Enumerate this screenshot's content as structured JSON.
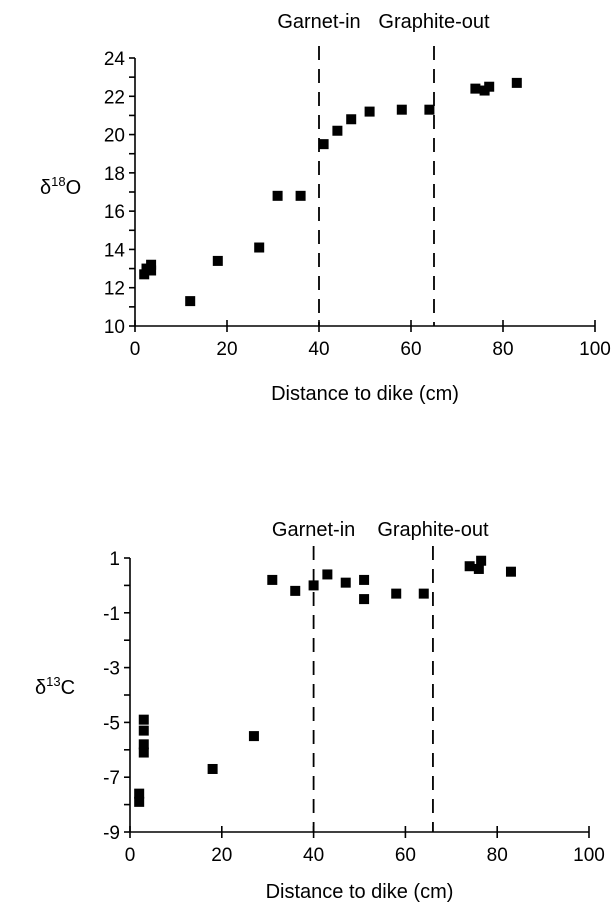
{
  "chart_data": [
    {
      "type": "scatter",
      "title": "",
      "xlabel": "Distance to dike (cm)",
      "ylabel": "δ18O",
      "ylabel_parts": {
        "prefix": "δ",
        "sup": "18",
        "base": "O"
      },
      "xlim": [
        0,
        100
      ],
      "ylim": [
        10,
        24
      ],
      "xticks": [
        0,
        20,
        40,
        60,
        80,
        100
      ],
      "yticks": [
        10,
        12,
        14,
        16,
        18,
        20,
        22,
        24
      ],
      "ytick_step_minor": 1,
      "grid": false,
      "marker": "filled-square",
      "marker_color": "#000000",
      "reference_lines": [
        {
          "x": 40,
          "label": "Garnet-in",
          "style": "dashed"
        },
        {
          "x": 65,
          "label": "Graphite-out",
          "style": "dashed"
        }
      ],
      "series": [
        {
          "x": [
            2,
            2.5,
            3.5,
            3.5,
            12,
            18,
            27,
            31,
            36,
            41,
            44,
            47,
            51,
            58,
            64,
            74,
            76,
            77,
            83
          ],
          "y": [
            12.7,
            13.0,
            12.9,
            13.2,
            11.3,
            13.4,
            14.1,
            16.8,
            16.8,
            19.5,
            20.2,
            20.8,
            21.2,
            21.3,
            21.3,
            22.4,
            22.3,
            22.5,
            22.7
          ]
        }
      ]
    },
    {
      "type": "scatter",
      "title": "",
      "xlabel": "Distance to dike (cm)",
      "ylabel": "δ13C",
      "ylabel_parts": {
        "prefix": "δ",
        "sup": "13",
        "base": "C"
      },
      "xlim": [
        0,
        100
      ],
      "ylim": [
        -9,
        1
      ],
      "xticks": [
        0,
        20,
        40,
        60,
        80,
        100
      ],
      "yticks": [
        -9,
        -7,
        -5,
        -3,
        -1,
        1
      ],
      "ytick_step_minor": 1,
      "grid": false,
      "marker": "filled-square",
      "marker_color": "#000000",
      "reference_lines": [
        {
          "x": 40,
          "label": "Garnet-in",
          "style": "dashed"
        },
        {
          "x": 66,
          "label": "Graphite-out",
          "style": "dashed"
        }
      ],
      "series": [
        {
          "x": [
            2,
            2,
            3,
            3,
            3,
            3,
            18,
            27,
            31,
            36,
            40,
            43,
            47,
            51,
            51,
            58,
            64,
            74,
            76,
            76.5,
            83
          ],
          "y": [
            -7.6,
            -7.9,
            -4.9,
            -5.3,
            -5.8,
            -6.1,
            -6.7,
            -5.5,
            0.2,
            -0.2,
            0,
            0.4,
            0.1,
            0.2,
            -0.5,
            -0.3,
            -0.3,
            0.7,
            0.6,
            0.9,
            0.5
          ]
        }
      ]
    }
  ]
}
